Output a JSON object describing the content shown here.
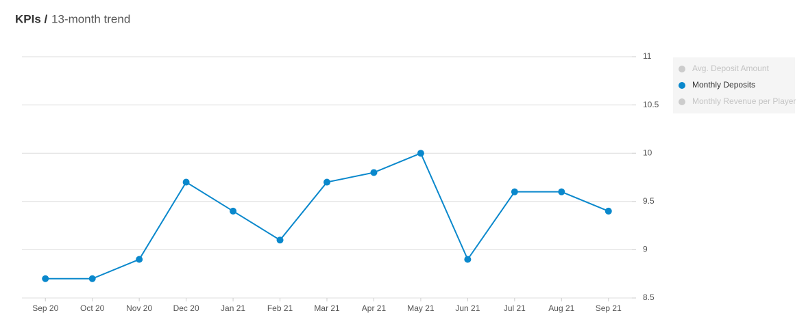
{
  "chart_data": {
    "type": "line",
    "title": "KPIs /",
    "subtitle": "13-month trend",
    "categories": [
      "Sep 20",
      "Oct 20",
      "Nov 20",
      "Dec 20",
      "Jan 21",
      "Feb 21",
      "Mar 21",
      "Apr 21",
      "May 21",
      "Jun 21",
      "Jul 21",
      "Aug 21",
      "Sep 21"
    ],
    "series": [
      {
        "name": "Avg. Deposit Amount",
        "color": "#cccccc",
        "visible": false,
        "values": [
          null,
          null,
          null,
          null,
          null,
          null,
          null,
          null,
          null,
          null,
          null,
          null,
          null
        ]
      },
      {
        "name": "Monthly Deposits",
        "color": "#0a88cc",
        "visible": true,
        "values": [
          8.7,
          8.7,
          8.9,
          9.7,
          9.4,
          9.1,
          9.7,
          9.8,
          10,
          8.9,
          9.6,
          9.6,
          9.4
        ]
      },
      {
        "name": "Monthly Revenue per Player",
        "color": "#cccccc",
        "visible": false,
        "values": [
          null,
          null,
          null,
          null,
          null,
          null,
          null,
          null,
          null,
          null,
          null,
          null,
          null
        ]
      }
    ],
    "ylim": [
      8.5,
      11
    ],
    "yticks": [
      8.5,
      9,
      9.5,
      10,
      10.5,
      11
    ],
    "grid": true,
    "y_axis_side": "right",
    "legend": "right"
  }
}
